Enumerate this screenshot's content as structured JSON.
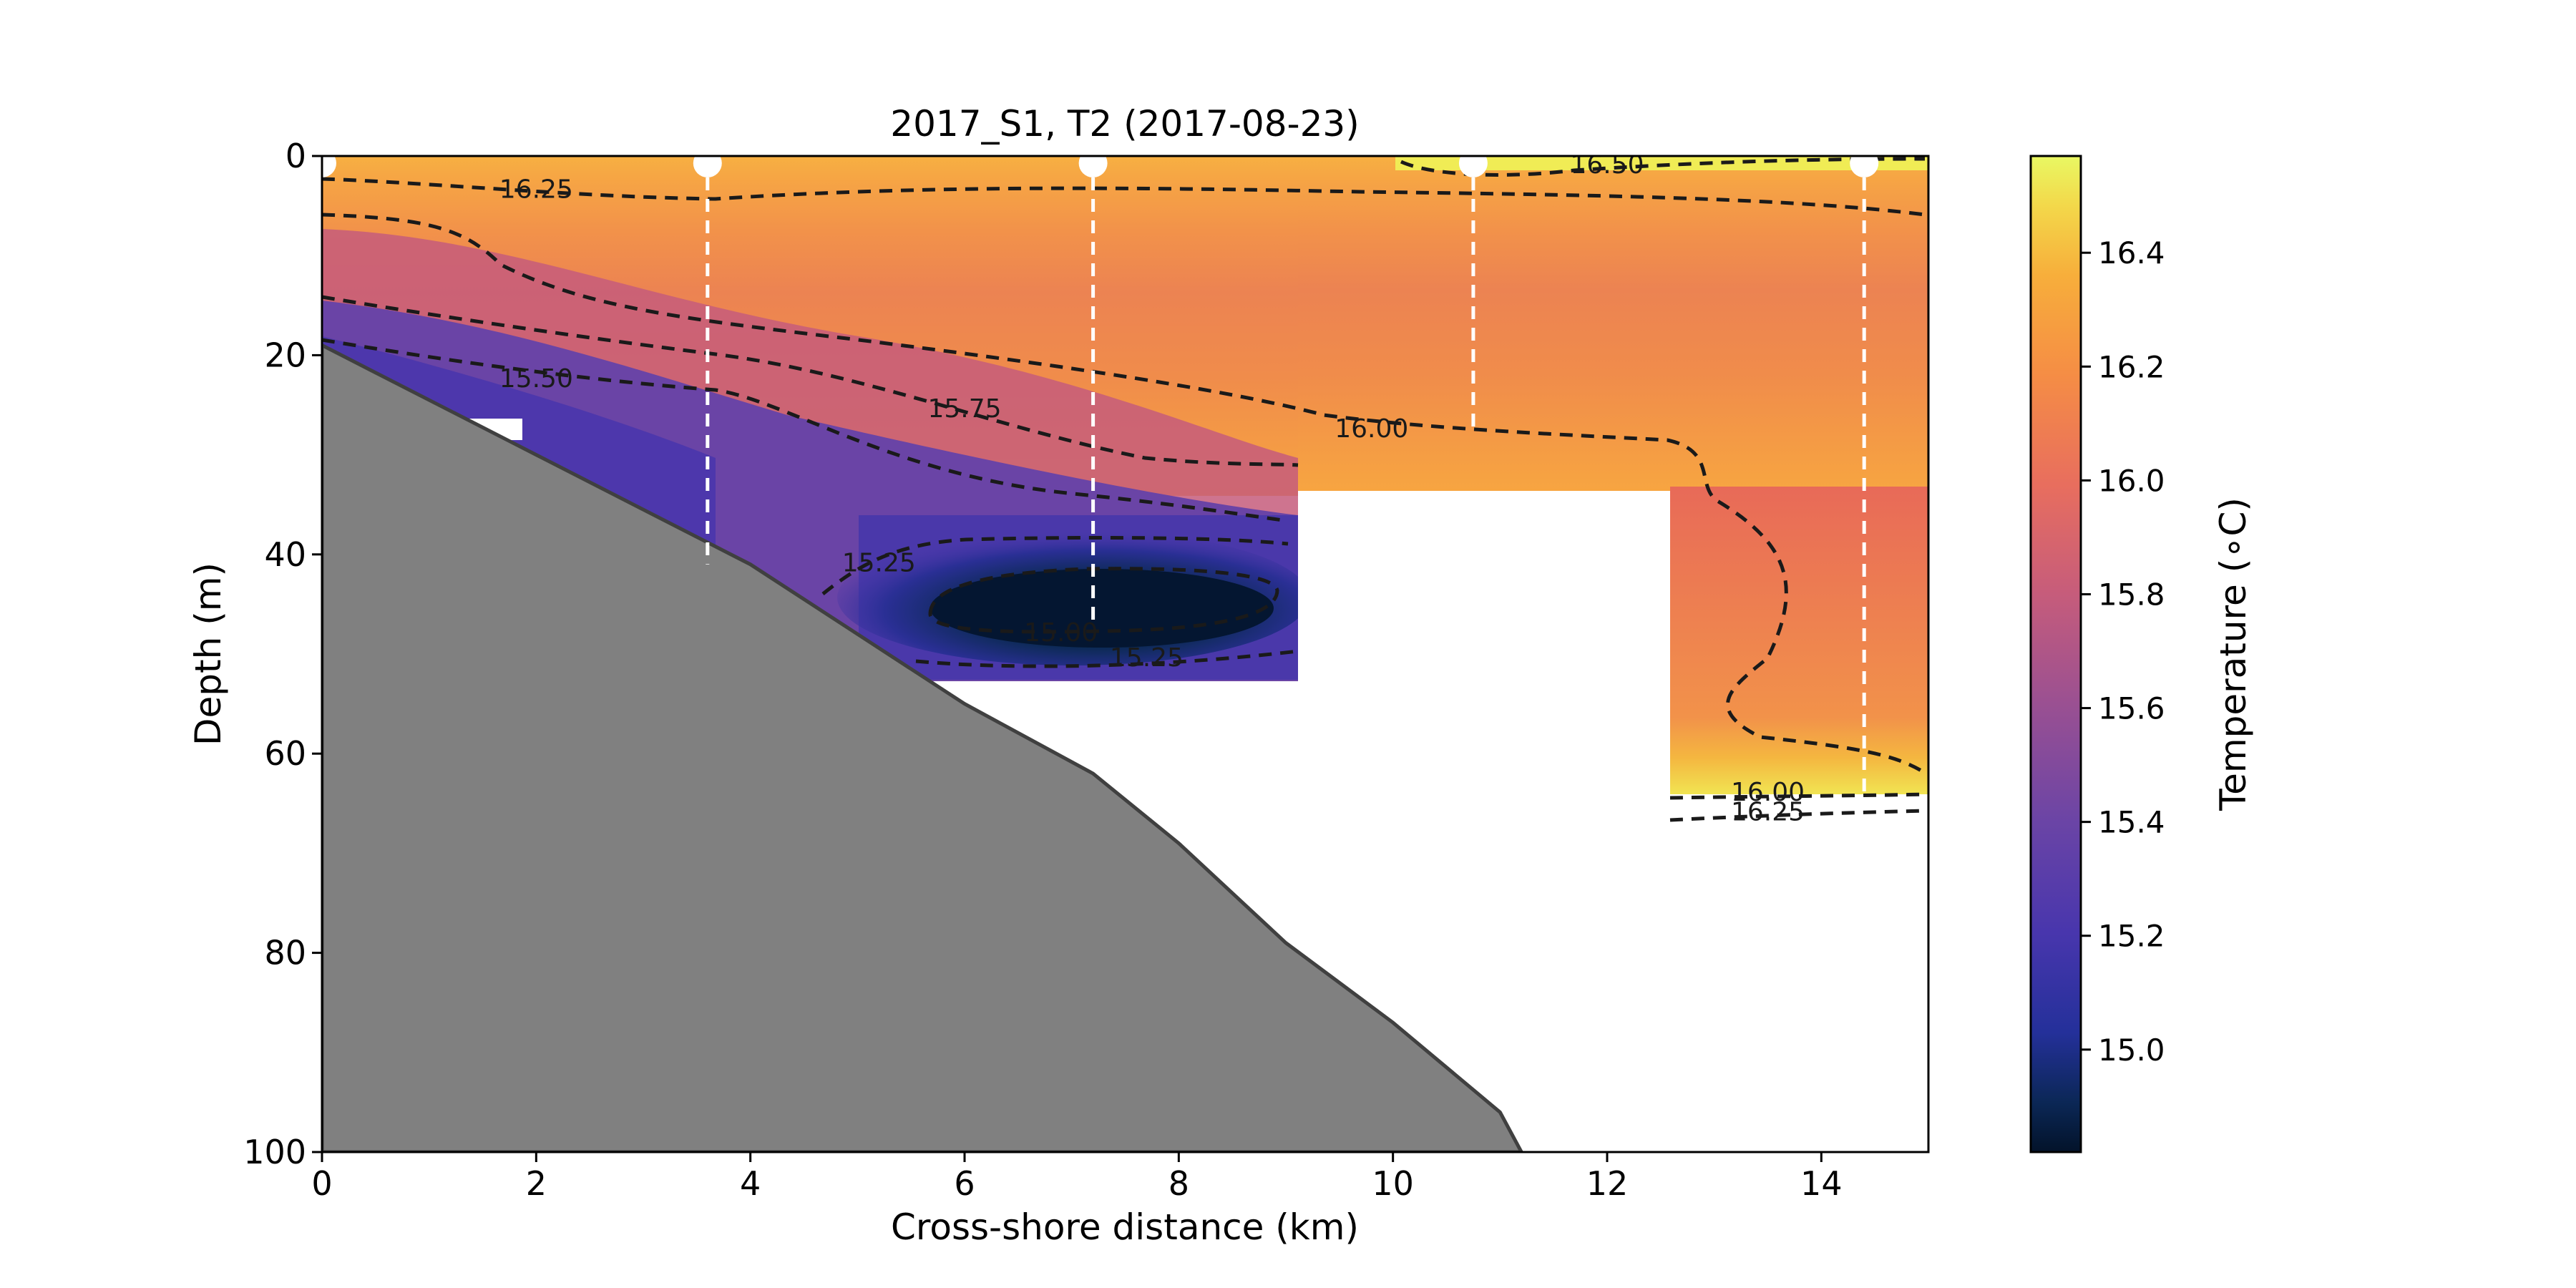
{
  "chart_data": {
    "type": "heatmap",
    "title": "2017_S1, T2 (2017-08-23)",
    "xlabel": "Cross-shore distance (km)",
    "ylabel": "Depth (m)",
    "xlim": [
      0,
      15
    ],
    "ylim": [
      100,
      0
    ],
    "x_ticks": [
      "0",
      "2",
      "4",
      "6",
      "8",
      "10",
      "12",
      "14"
    ],
    "y_ticks": [
      "0",
      "20",
      "40",
      "60",
      "80",
      "100"
    ],
    "colorbar": {
      "label": "Temperature (∘C)",
      "range": [
        14.82,
        16.57
      ],
      "ticks": [
        "15.0",
        "15.2",
        "15.4",
        "15.6",
        "15.8",
        "16.0",
        "16.2",
        "16.4"
      ]
    },
    "stations": [
      {
        "x": 0.0,
        "max_depth": 0
      },
      {
        "x": 3.6,
        "max_depth": 41
      },
      {
        "x": 7.2,
        "max_depth": 47
      },
      {
        "x": 10.75,
        "max_depth": 28
      },
      {
        "x": 14.4,
        "max_depth": 64
      }
    ],
    "bathymetry": [
      {
        "x": 0,
        "depth": 19
      },
      {
        "x": 2,
        "depth": 30
      },
      {
        "x": 4,
        "depth": 41
      },
      {
        "x": 6,
        "depth": 55
      },
      {
        "x": 7.2,
        "depth": 62
      },
      {
        "x": 8,
        "depth": 69
      },
      {
        "x": 9,
        "depth": 79
      },
      {
        "x": 10,
        "depth": 87
      },
      {
        "x": 11,
        "depth": 96
      },
      {
        "x": 11.2,
        "depth": 100
      }
    ],
    "contour_levels": [
      "15.00",
      "15.25",
      "15.50",
      "15.75",
      "16.00",
      "16.25",
      "16.50"
    ],
    "contour_labels": [
      {
        "text": "16.25",
        "x": 2.0,
        "depth": 3.5
      },
      {
        "text": "16.50",
        "x": 12.0,
        "depth": 1.0
      },
      {
        "text": "15.50",
        "x": 2.0,
        "depth": 22.5
      },
      {
        "text": "15.75",
        "x": 6.0,
        "depth": 25.5
      },
      {
        "text": "16.00",
        "x": 9.8,
        "depth": 27.5
      },
      {
        "text": "15.25",
        "x": 5.2,
        "depth": 41.0
      },
      {
        "text": "15.00",
        "x": 6.9,
        "depth": 48.0
      },
      {
        "text": "15.25",
        "x": 7.7,
        "depth": 50.5
      },
      {
        "text": "16.00",
        "x": 13.5,
        "depth": 64.0
      },
      {
        "text": "16.25",
        "x": 13.5,
        "depth": 66.0
      }
    ],
    "colors": {
      "land": "#808080",
      "contour": "#1a1a1a",
      "station_marker": "#ffffff"
    }
  }
}
